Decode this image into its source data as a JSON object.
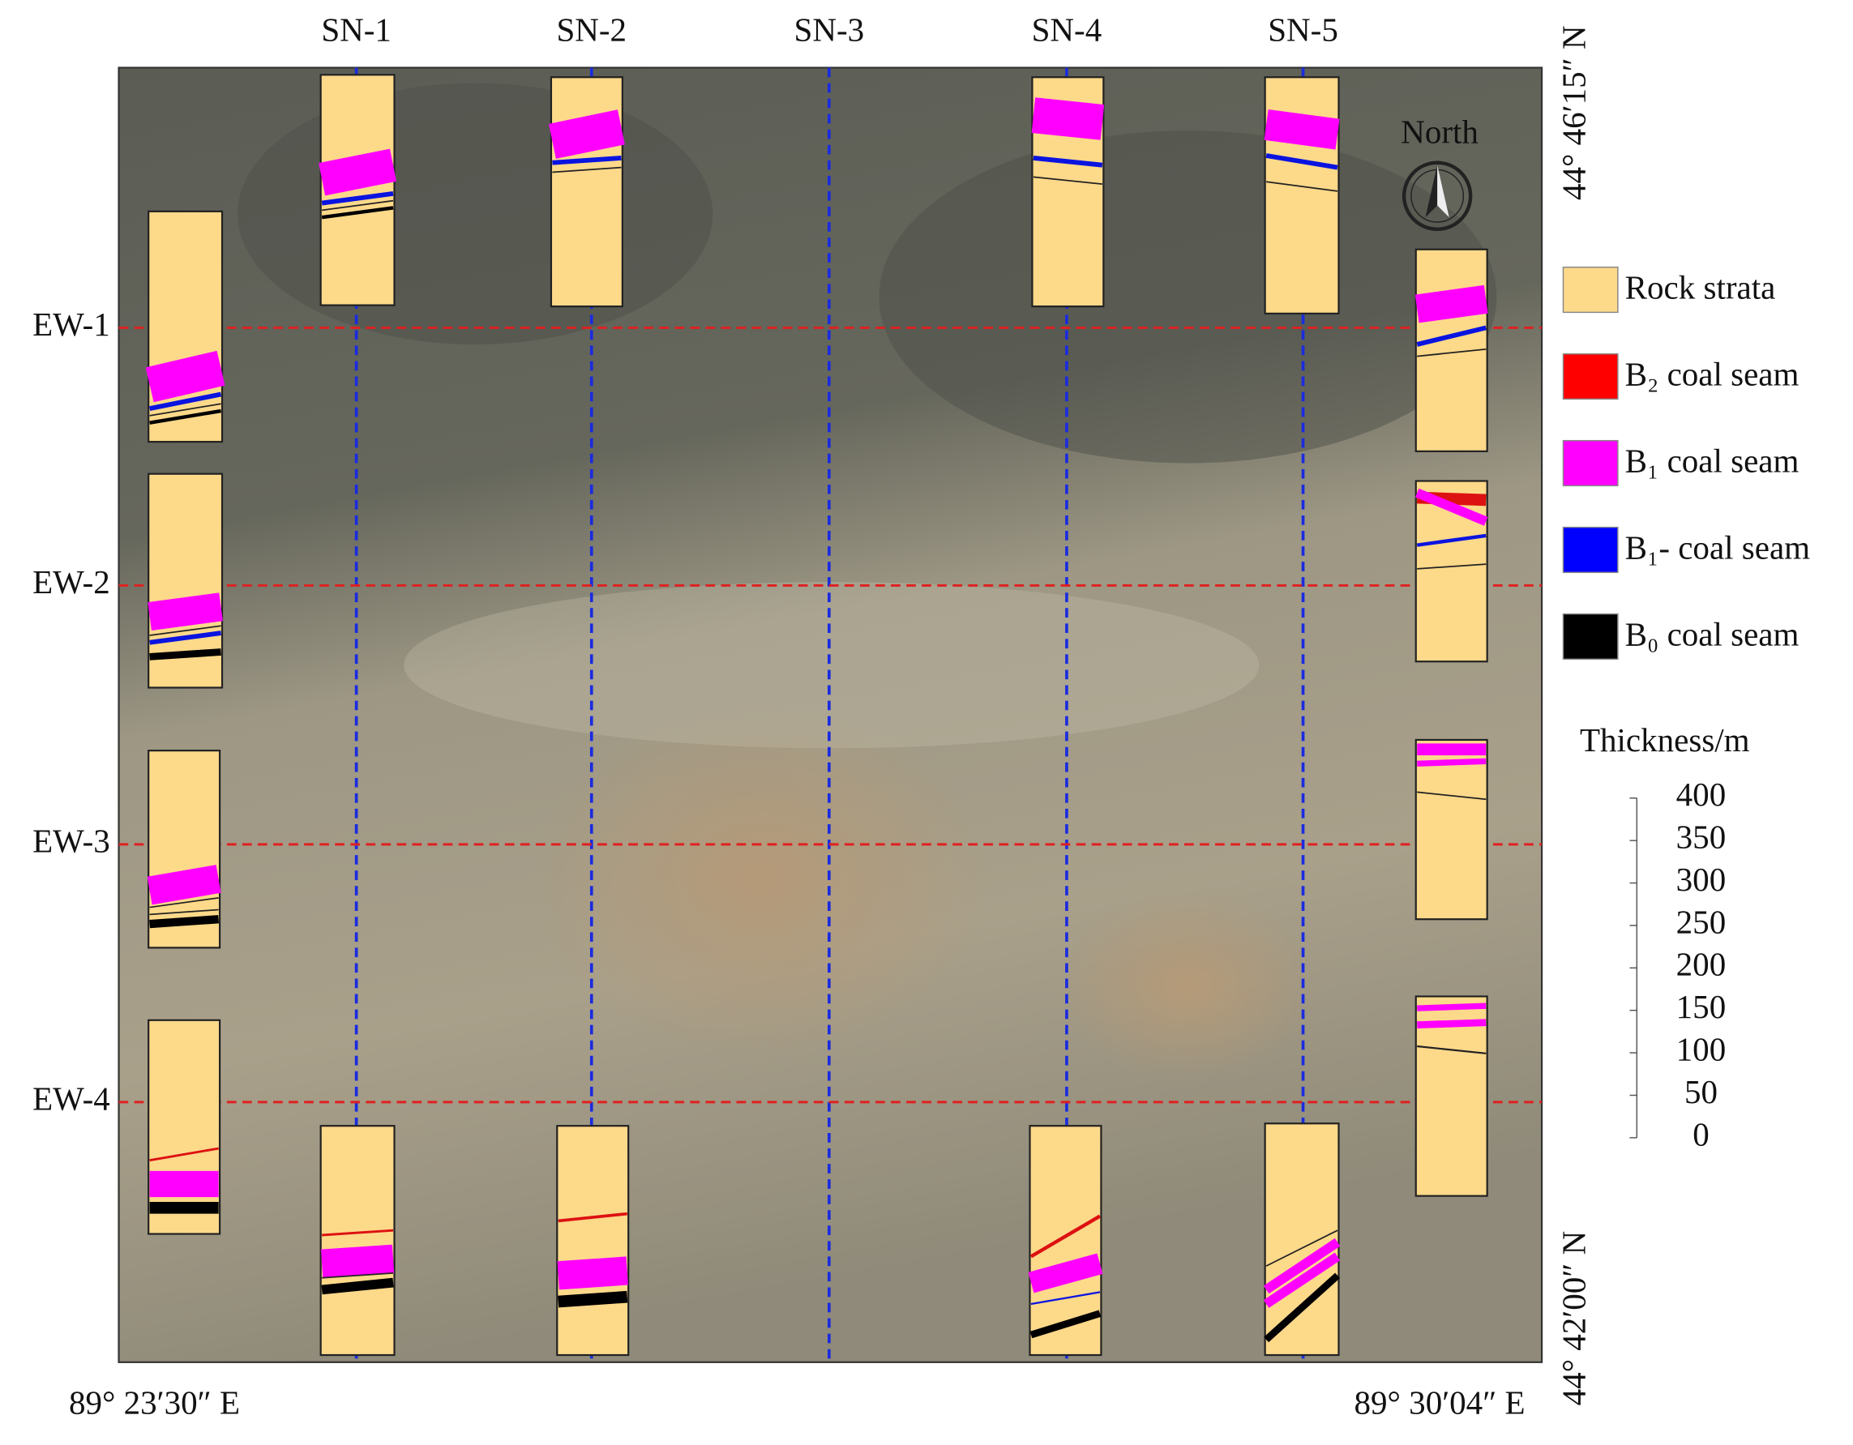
{
  "sn_labels": [
    "SN-1",
    "SN-2",
    "SN-3",
    "SN-4",
    "SN-5"
  ],
  "ew_labels": [
    "EW-1",
    "EW-2",
    "EW-3",
    "EW-4"
  ],
  "coordinates": {
    "bottom_left": "89° 23′30″ E",
    "bottom_right": "89° 30′04″ E",
    "right_top": "44° 46′15″ N",
    "right_bottom": "44° 42′00″ N"
  },
  "north": "North",
  "legend": [
    "Rock strata",
    "B₂ coal seam",
    "B₁ coal seam",
    "B₁- coal seam",
    "B₀ coal seam"
  ],
  "thickness_scale": {
    "title": "Thickness/m",
    "ticks": [
      0,
      50,
      100,
      150,
      200,
      250,
      300,
      350,
      400
    ]
  }
}
